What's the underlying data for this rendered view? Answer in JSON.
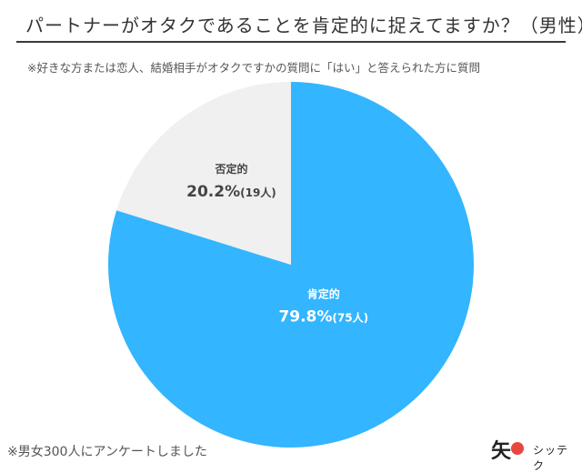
{
  "title": "パートナーがオタクであることを肯定的に捉えてますか？（男性）",
  "subtitle": "※好きな方または恋人、結婚相手がオタクですかの質問に「はい」と答えられた方に質問",
  "footnote": "※男女300人にアンケートしました",
  "logo": {
    "mark": "矢",
    "text": "シッテク"
  },
  "chart_data": {
    "type": "pie",
    "slices": [
      {
        "label": "肯定的",
        "percent_label": "79.8%",
        "count_label": "(75人)",
        "value": 79.8,
        "count": 75,
        "color": "#33b5ff",
        "text_color": "#ffffff"
      },
      {
        "label": "否定的",
        "percent_label": "20.2%",
        "count_label": "(19人)",
        "value": 20.2,
        "count": 19,
        "color": "#f0f0f0",
        "text_color": "#444444"
      }
    ],
    "start": "12 o'clock",
    "direction": "clockwise"
  }
}
